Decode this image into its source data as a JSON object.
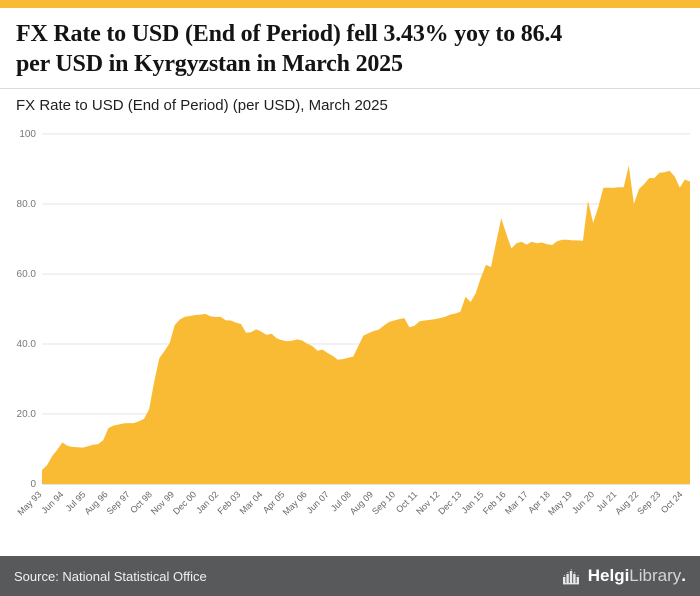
{
  "header": {
    "title_line1": "FX Rate to USD (End of Period) fell 3.43% yoy to 86.4",
    "title_line2": "per USD in Kyrgyzstan in March 2025",
    "subtitle": "FX Rate to USD (End of Period) (per USD), March 2025"
  },
  "footer": {
    "source": "Source: National Statistical Office",
    "brand_bold": "Helgi",
    "brand_light": "Library",
    "brand_dot": "."
  },
  "colors": {
    "accent": "#F9BB33",
    "footer_bg": "#58595B",
    "grid": "#e4e4e4",
    "baseline": "#c9c9c9"
  },
  "chart_data": {
    "type": "area",
    "title": "FX Rate to USD (End of Period) (per USD), March 2025",
    "country": "Kyrgyzstan",
    "last_value": 86.4,
    "yoy_change_pct": -3.43,
    "ylim": [
      0,
      100
    ],
    "yticks": [
      {
        "v": 0,
        "label": "0"
      },
      {
        "v": 20,
        "label": "20.0"
      },
      {
        "v": 40,
        "label": "40.0"
      },
      {
        "v": 60,
        "label": "60.0"
      },
      {
        "v": 80,
        "label": "80.0"
      },
      {
        "v": 100,
        "label": "100"
      }
    ],
    "xticklabels": [
      "May 93",
      "Jun 94",
      "Jul 95",
      "Aug 96",
      "Sep 97",
      "Oct 98",
      "Nov 99",
      "Dec 00",
      "Jan 02",
      "Feb 03",
      "Mar 04",
      "Apr 05",
      "May 06",
      "Jun 07",
      "Jul 08",
      "Aug 09",
      "Sep 10",
      "Oct 11",
      "Nov 12",
      "Dec 13",
      "Jan 15",
      "Feb 16",
      "Mar 17",
      "Apr 18",
      "May 19",
      "Jun 20",
      "Jul 21",
      "Aug 22",
      "Sep 23",
      "Oct 24"
    ],
    "xtick_month_step": 13,
    "total_months": 381,
    "freq": "quarterly",
    "start": "1993 Q2",
    "end": "2025 Q1",
    "values": [
      4.0,
      5.4,
      8.0,
      9.8,
      11.9,
      10.9,
      10.6,
      10.5,
      10.4,
      10.8,
      11.2,
      11.4,
      12.5,
      15.9,
      16.7,
      17.0,
      17.3,
      17.4,
      17.4,
      17.9,
      18.6,
      21.3,
      29.4,
      36.0,
      38.0,
      40.2,
      45.4,
      47.0,
      47.8,
      48.0,
      48.3,
      48.4,
      48.6,
      47.9,
      47.7,
      47.8,
      46.8,
      46.7,
      46.1,
      45.7,
      43.2,
      43.4,
      44.2,
      43.5,
      42.6,
      42.9,
      41.6,
      41.1,
      40.8,
      40.9,
      41.3,
      41.0,
      40.1,
      39.4,
      38.1,
      38.4,
      37.4,
      36.6,
      35.5,
      35.7,
      36.1,
      36.4,
      39.4,
      42.4,
      43.1,
      43.7,
      44.1,
      45.3,
      46.3,
      46.7,
      47.1,
      47.4,
      44.8,
      45.2,
      46.5,
      46.7,
      46.9,
      47.1,
      47.4,
      47.8,
      48.4,
      48.7,
      49.2,
      53.5,
      52.0,
      54.5,
      58.9,
      62.6,
      62.0,
      69.0,
      75.9,
      71.5,
      67.3,
      68.8,
      69.2,
      68.4,
      69.2,
      68.8,
      69.0,
      68.5,
      68.3,
      69.4,
      69.8,
      69.8,
      69.6,
      69.6,
      69.5,
      80.9,
      74.6,
      79.0,
      84.6,
      84.7,
      84.6,
      84.8,
      84.8,
      91.0,
      80.0,
      84.3,
      85.7,
      87.4,
      87.4,
      88.9,
      89.1,
      89.5,
      87.9,
      84.7,
      87.0,
      86.4
    ]
  }
}
